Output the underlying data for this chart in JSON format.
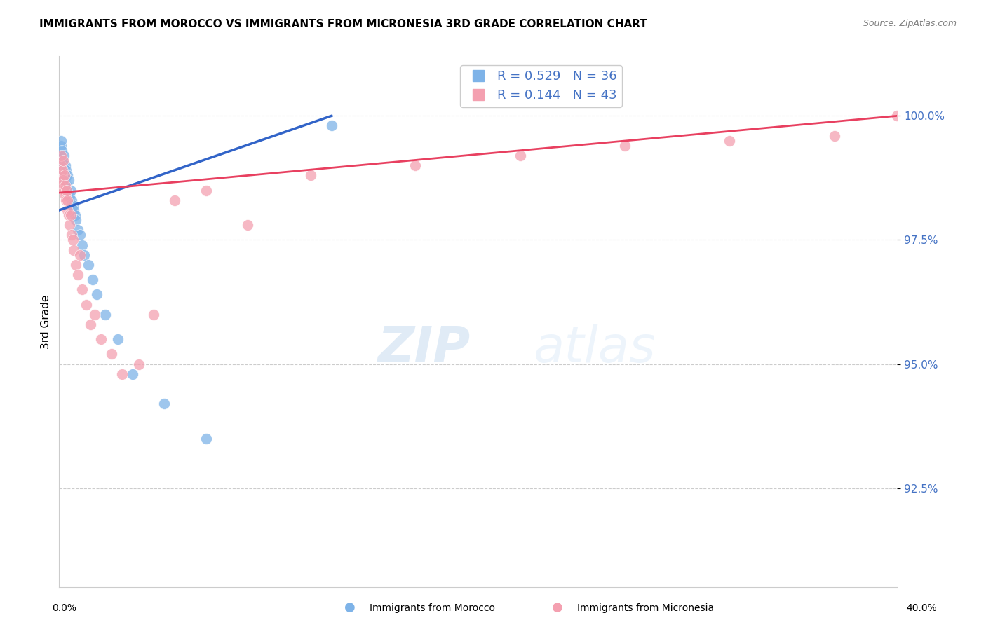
{
  "title": "IMMIGRANTS FROM MOROCCO VS IMMIGRANTS FROM MICRONESIA 3RD GRADE CORRELATION CHART",
  "source": "Source: ZipAtlas.com",
  "ylabel": "3rd Grade",
  "ytick_values": [
    92.5,
    95.0,
    97.5,
    100.0
  ],
  "xlim": [
    0.0,
    40.0
  ],
  "ylim": [
    90.5,
    101.2
  ],
  "legend_blue_r": "R = 0.529",
  "legend_blue_n": "N = 36",
  "legend_pink_r": "R = 0.144",
  "legend_pink_n": "N = 43",
  "blue_color": "#7EB3E8",
  "pink_color": "#F4A0B0",
  "blue_line_color": "#3264C8",
  "pink_line_color": "#E84060",
  "blue_x": [
    0.05,
    0.08,
    0.1,
    0.12,
    0.15,
    0.18,
    0.2,
    0.22,
    0.25,
    0.28,
    0.3,
    0.32,
    0.35,
    0.38,
    0.4,
    0.45,
    0.5,
    0.55,
    0.6,
    0.65,
    0.7,
    0.75,
    0.8,
    0.9,
    1.0,
    1.1,
    1.2,
    1.4,
    1.6,
    1.8,
    2.2,
    2.8,
    3.5,
    5.0,
    7.0,
    13.0
  ],
  "blue_y": [
    99.2,
    99.4,
    99.5,
    99.3,
    99.1,
    99.0,
    98.9,
    99.2,
    98.8,
    98.7,
    99.0,
    98.9,
    98.6,
    98.8,
    98.5,
    98.7,
    98.4,
    98.5,
    98.3,
    98.2,
    98.1,
    98.0,
    97.9,
    97.7,
    97.6,
    97.4,
    97.2,
    97.0,
    96.7,
    96.4,
    96.0,
    95.5,
    94.8,
    94.2,
    93.5,
    99.8
  ],
  "pink_x": [
    0.05,
    0.08,
    0.1,
    0.12,
    0.15,
    0.18,
    0.2,
    0.22,
    0.25,
    0.28,
    0.3,
    0.32,
    0.35,
    0.38,
    0.4,
    0.45,
    0.5,
    0.55,
    0.6,
    0.65,
    0.7,
    0.8,
    0.9,
    1.0,
    1.1,
    1.3,
    1.5,
    1.7,
    2.0,
    2.5,
    3.0,
    3.8,
    4.5,
    5.5,
    7.0,
    9.0,
    12.0,
    17.0,
    22.0,
    27.0,
    32.0,
    37.0,
    40.0
  ],
  "pink_y": [
    98.6,
    99.0,
    99.2,
    98.8,
    98.9,
    99.1,
    98.7,
    98.5,
    98.8,
    98.4,
    98.6,
    98.3,
    98.5,
    98.1,
    98.3,
    98.0,
    97.8,
    98.0,
    97.6,
    97.5,
    97.3,
    97.0,
    96.8,
    97.2,
    96.5,
    96.2,
    95.8,
    96.0,
    95.5,
    95.2,
    94.8,
    95.0,
    96.0,
    98.3,
    98.5,
    97.8,
    98.8,
    99.0,
    99.2,
    99.4,
    99.5,
    99.6,
    100.0
  ],
  "blue_line_x": [
    0.0,
    13.0
  ],
  "blue_line_y": [
    98.1,
    100.0
  ],
  "pink_line_x": [
    0.0,
    40.0
  ],
  "pink_line_y": [
    98.45,
    100.0
  ]
}
